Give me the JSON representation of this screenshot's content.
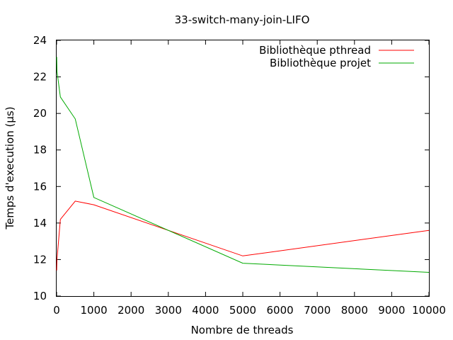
{
  "chart_data": {
    "type": "line",
    "title": "33-switch-many-join-LIFO",
    "xlabel": "Nombre de threads",
    "ylabel": "Temps d'execution (µs)",
    "xlim": [
      0,
      10000
    ],
    "ylim": [
      10,
      24
    ],
    "xticks": [
      0,
      1000,
      2000,
      3000,
      4000,
      5000,
      6000,
      7000,
      8000,
      9000,
      10000
    ],
    "yticks": [
      10,
      12,
      14,
      16,
      18,
      20,
      22,
      24
    ],
    "grid": false,
    "legend_position": "top-right",
    "series": [
      {
        "name": "Bibliothèque pthread",
        "color": "#ff0000",
        "x": [
          1,
          10,
          100,
          500,
          1000,
          5000,
          10000
        ],
        "y": [
          11.4,
          12.0,
          14.2,
          15.2,
          15.0,
          12.2,
          13.6
        ]
      },
      {
        "name": "Bibliothèque projet",
        "color": "#00aa00",
        "x": [
          1,
          10,
          100,
          500,
          1000,
          5000,
          10000
        ],
        "y": [
          23.1,
          22.3,
          20.9,
          19.7,
          15.4,
          11.8,
          11.3
        ]
      }
    ]
  }
}
